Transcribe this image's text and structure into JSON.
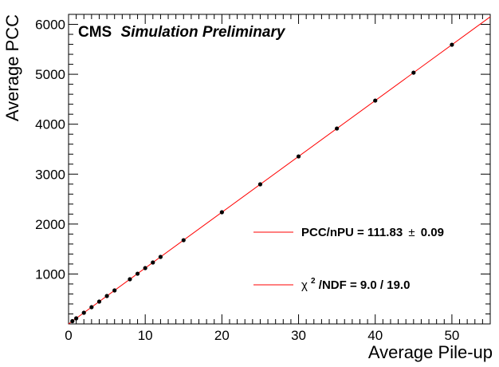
{
  "chart_data": {
    "type": "scatter",
    "title": "",
    "experiment_label": "CMS",
    "experiment_sublabel": "Simulation Preliminary",
    "xlabel": "Average Pile-up",
    "ylabel": "Average PCC",
    "xlim": [
      0,
      55
    ],
    "ylim": [
      0,
      6200
    ],
    "xticks": [
      0,
      10,
      20,
      30,
      40,
      50
    ],
    "yticks": [
      1000,
      2000,
      3000,
      4000,
      5000,
      6000
    ],
    "grid": false,
    "points": {
      "x": [
        0.5,
        1,
        2,
        3,
        4,
        5,
        6,
        8,
        9,
        10,
        11,
        12,
        15,
        20,
        25,
        30,
        35,
        40,
        45,
        50
      ],
      "y": [
        56,
        112,
        224,
        335,
        447,
        559,
        671,
        895,
        1006,
        1118,
        1230,
        1342,
        1677,
        2237,
        2796,
        3355,
        3914,
        4473,
        5032,
        5592
      ]
    },
    "fit": {
      "slope": 111.83,
      "slope_error": 0.09,
      "color": "#ff0000"
    },
    "point_color": "#000000",
    "legend": {
      "placement": "lower-right",
      "entries": [
        {
          "label": "PCC/nPU = 111.83",
          "pm": "±",
          "value": "0.09"
        },
        {
          "label": "χ",
          "sup": "2",
          "rest": "/NDF = 9.0 / 19.0"
        }
      ]
    }
  }
}
